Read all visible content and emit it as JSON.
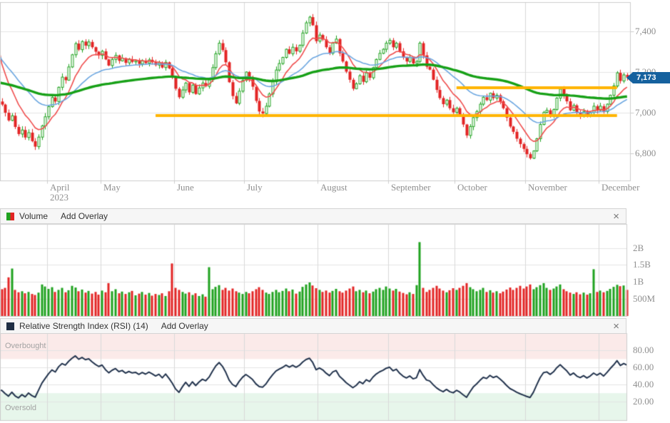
{
  "chart_data": {
    "type": "candlestick",
    "price_panel": {
      "last_price_label": "7,173",
      "last_price_value": 7173,
      "y_axis_ticks": [
        {
          "value": 7400,
          "label": "7,400"
        },
        {
          "value": 7200,
          "label": "7,200"
        },
        {
          "value": 7000,
          "label": "7,000"
        },
        {
          "value": 6800,
          "label": "6,800"
        }
      ],
      "x_axis_months": [
        {
          "label": "April",
          "sublabel": "2023",
          "index": 14
        },
        {
          "label": "May",
          "index": 30
        },
        {
          "label": "June",
          "index": 52
        },
        {
          "label": "July",
          "index": 73
        },
        {
          "label": "August",
          "index": 95
        },
        {
          "label": "September",
          "index": 116
        },
        {
          "label": "October",
          "index": 136
        },
        {
          "label": "November",
          "index": 157
        },
        {
          "label": "December",
          "index": 179
        }
      ],
      "candles": {
        "open_rule": "previous_close",
        "first_open": 7055,
        "closes": [
          7040,
          7000,
          6962,
          6985,
          6930,
          6895,
          6915,
          6878,
          6902,
          6860,
          6833,
          6880,
          6935,
          6980,
          7030,
          7075,
          7055,
          7125,
          7175,
          7160,
          7225,
          7285,
          7340,
          7310,
          7350,
          7330,
          7348,
          7322,
          7300,
          7282,
          7302,
          7262,
          7232,
          7262,
          7282,
          7255,
          7268,
          7245,
          7262,
          7250,
          7256,
          7240,
          7256,
          7244,
          7260,
          7248,
          7234,
          7246,
          7222,
          7248,
          7218,
          7178,
          7118,
          7076,
          7112,
          7146,
          7100,
          7136,
          7092,
          7122,
          7146,
          7130,
          7162,
          7222,
          7290,
          7342,
          7308,
          7248,
          7150,
          7082,
          7046,
          7106,
          7160,
          7200,
          7168,
          7128,
          7058,
          7006,
          6996,
          7032,
          7092,
          7152,
          7210,
          7242,
          7272,
          7312,
          7290,
          7322,
          7302,
          7332,
          7392,
          7442,
          7470,
          7430,
          7352,
          7382,
          7360,
          7322,
          7292,
          7342,
          7362,
          7292,
          7252,
          7202,
          7162,
          7118,
          7142,
          7182,
          7152,
          7196,
          7172,
          7222,
          7262,
          7292,
          7312,
          7342,
          7356,
          7322,
          7342,
          7302,
          7272,
          7252,
          7272,
          7242,
          7252,
          7342,
          7282,
          7226,
          7212,
          7162,
          7112,
          7072,
          7042,
          7062,
          7022,
          7002,
          7022,
          6992,
          6942,
          6888,
          6932,
          6976,
          7006,
          7042,
          7076,
          7062,
          7096,
          7072,
          7086,
          7056,
          7022,
          6976,
          6932,
          6906,
          6872,
          6846,
          6822,
          6796,
          6776,
          6812,
          6872,
          6942,
          7002,
          7012,
          6986,
          7016,
          7072,
          7116,
          7086,
          7056,
          7012,
          7036,
          7002,
          6986,
          7006,
          6982,
          7002,
          7032,
          7012,
          7032,
          7006,
          7042,
          7086,
          7132,
          7196,
          7156,
          7186,
          7173
        ]
      },
      "overlays": [
        {
          "name": "fast-moving-average",
          "color": "#ef4d4d",
          "period": 9,
          "seed": 7290,
          "width": 1.6
        },
        {
          "name": "mid-moving-average",
          "color": "#6ba6e0",
          "period": 25,
          "seed": 7278,
          "width": 1.6
        },
        {
          "name": "slow-moving-average",
          "color": "#16a016",
          "period": 90,
          "seed": 7148,
          "width": 3.4
        }
      ],
      "trendlines": [
        {
          "price": 6985,
          "from_index": 46,
          "to_index": 184,
          "color": "#ffb400",
          "width": 4
        },
        {
          "price": 7123,
          "from_index": 136,
          "to_index": 184,
          "color": "#ffb400",
          "width": 4
        }
      ]
    },
    "volume_panel": {
      "title": "Volume",
      "add_overlay_label": "Add Overlay",
      "close_label": "×",
      "y_axis_ticks": [
        {
          "value": 2000,
          "label": "2B"
        },
        {
          "value": 1500,
          "label": "1.5B"
        },
        {
          "value": 1000,
          "label": "1B"
        },
        {
          "value": 500,
          "label": "500M"
        }
      ],
      "values_millions": [
        780,
        820,
        1130,
        1390,
        760,
        690,
        720,
        660,
        700,
        640,
        610,
        680,
        920,
        860,
        790,
        840,
        700,
        760,
        820,
        690,
        750,
        880,
        830,
        720,
        770,
        680,
        730,
        650,
        700,
        620,
        740,
        690,
        960,
        720,
        780,
        660,
        710,
        640,
        690,
        730,
        600,
        650,
        700,
        620,
        670,
        590,
        640,
        610,
        660,
        580,
        720,
        1540,
        820,
        760,
        700,
        650,
        690,
        610,
        660,
        580,
        630,
        560,
        1430,
        780,
        850,
        900,
        760,
        820,
        740,
        800,
        720,
        680,
        640,
        700,
        660,
        720,
        780,
        840,
        760,
        680,
        640,
        700,
        760,
        690,
        730,
        800,
        720,
        770,
        650,
        710,
        850,
        920,
        980,
        890,
        810,
        760,
        700,
        740,
        680,
        730,
        790,
        720,
        680,
        740,
        800,
        860,
        720,
        760,
        690,
        740,
        660,
        710,
        780,
        820,
        760,
        860,
        800,
        740,
        790,
        710,
        670,
        630,
        690,
        640,
        900,
        2170,
        820,
        700,
        760,
        820,
        880,
        800,
        740,
        690,
        750,
        810,
        760,
        820,
        880,
        960,
        840,
        780,
        720,
        760,
        820,
        700,
        750,
        680,
        720,
        660,
        710,
        770,
        830,
        760,
        820,
        880,
        800,
        860,
        920,
        780,
        840,
        900,
        960,
        820,
        760,
        800,
        860,
        920,
        780,
        720,
        680,
        640,
        690,
        630,
        680,
        620,
        660,
        1370,
        700,
        740,
        690,
        730,
        790,
        850,
        910,
        870,
        890,
        760
      ]
    },
    "rsi_panel": {
      "title": "Relative Strength Index (RSI) (14)",
      "add_overlay_label": "Add Overlay",
      "close_label": "×",
      "period": 14,
      "overbought_label": "Overbought",
      "oversold_label": "Oversold",
      "overbought_from": 70,
      "oversold_to": 30,
      "y_axis_ticks": [
        {
          "value": 80,
          "label": "80.00"
        },
        {
          "value": 60,
          "label": "60.00"
        },
        {
          "value": 40,
          "label": "40.00"
        },
        {
          "value": 20,
          "label": "20.00"
        }
      ]
    },
    "colors": {
      "candle_up": "#1fa21f",
      "candle_down": "#e32424",
      "grid_h": "#e4e4e4",
      "grid_v": "#d9d9d9",
      "border": "#cccccc",
      "trendline": "#ffb400",
      "price_tag_bg": "#15619e",
      "rsi_line": "#22334d",
      "overbought_band": "#fbeae9",
      "oversold_band": "#e7f6eb",
      "header_bg": "#f6f6f6"
    }
  }
}
